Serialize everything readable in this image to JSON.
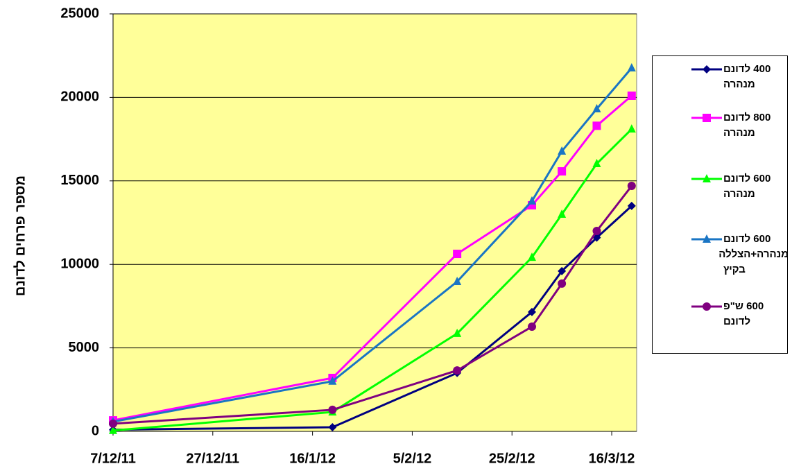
{
  "chart_data": {
    "type": "line",
    "y_label": "מספר פרחים לדונם",
    "x": [
      "2011-12-07",
      "2012-01-20",
      "2012-02-14",
      "2012-02-29",
      "2012-03-06",
      "2012-03-13",
      "2012-03-20"
    ],
    "series": [
      {
        "name": "400 לדונם מנהרה",
        "color": "#000080",
        "marker": "diamond",
        "values": [
          100,
          250,
          3500,
          7150,
          9600,
          11600,
          13500
        ]
      },
      {
        "name": "800 לדונם מנהרה",
        "color": "#ff00ff",
        "marker": "square",
        "values": [
          660,
          3200,
          10630,
          13540,
          15570,
          18300,
          20100
        ]
      },
      {
        "name": "600 לדונם מנהרה",
        "color": "#00ff00",
        "marker": "triangle",
        "values": [
          50,
          1160,
          5860,
          10420,
          13000,
          16030,
          18100
        ]
      },
      {
        "name": "600 לדונם מנהרה+הצללה בקיץ",
        "color": "#1a75c4",
        "marker": "triangle",
        "values": [
          580,
          3000,
          8970,
          13790,
          16780,
          19310,
          21760
        ]
      },
      {
        "name": "600 ש\"פ לדונם",
        "color": "#800080",
        "marker": "circle",
        "values": [
          460,
          1290,
          3650,
          6270,
          8850,
          12000,
          14700
        ]
      }
    ],
    "xlim": [
      "2011-12-07",
      "2012-03-21"
    ],
    "xticks": [
      {
        "value": "2011-12-07",
        "label": "7/12/11"
      },
      {
        "value": "2011-12-27",
        "label": "27/12/11"
      },
      {
        "value": "2012-01-16",
        "label": "16/1/12"
      },
      {
        "value": "2012-02-05",
        "label": "5/2/12"
      },
      {
        "value": "2012-02-25",
        "label": "25/2/12"
      },
      {
        "value": "2012-03-16",
        "label": "16/3/12"
      }
    ],
    "ylim": [
      0,
      25000
    ],
    "yticks": [
      0,
      5000,
      10000,
      15000,
      20000,
      25000
    ],
    "grid": true,
    "legend": "right"
  }
}
